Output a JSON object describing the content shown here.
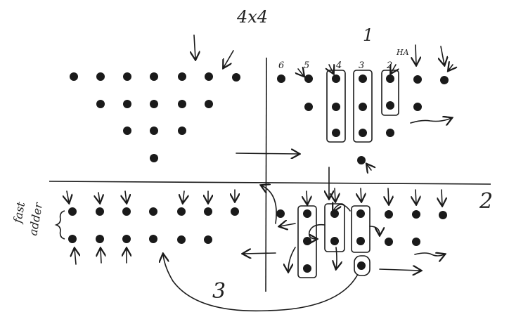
{
  "title": "4x4",
  "step_labels": {
    "one": "1",
    "two": "2",
    "three": "3"
  },
  "column_numbers": [
    "6",
    "5",
    "4",
    "3",
    "2"
  ],
  "ha_label": "HA",
  "side_label_line1": "fast",
  "side_label_line2": "adder",
  "ink_color": "#1a1a1a"
}
